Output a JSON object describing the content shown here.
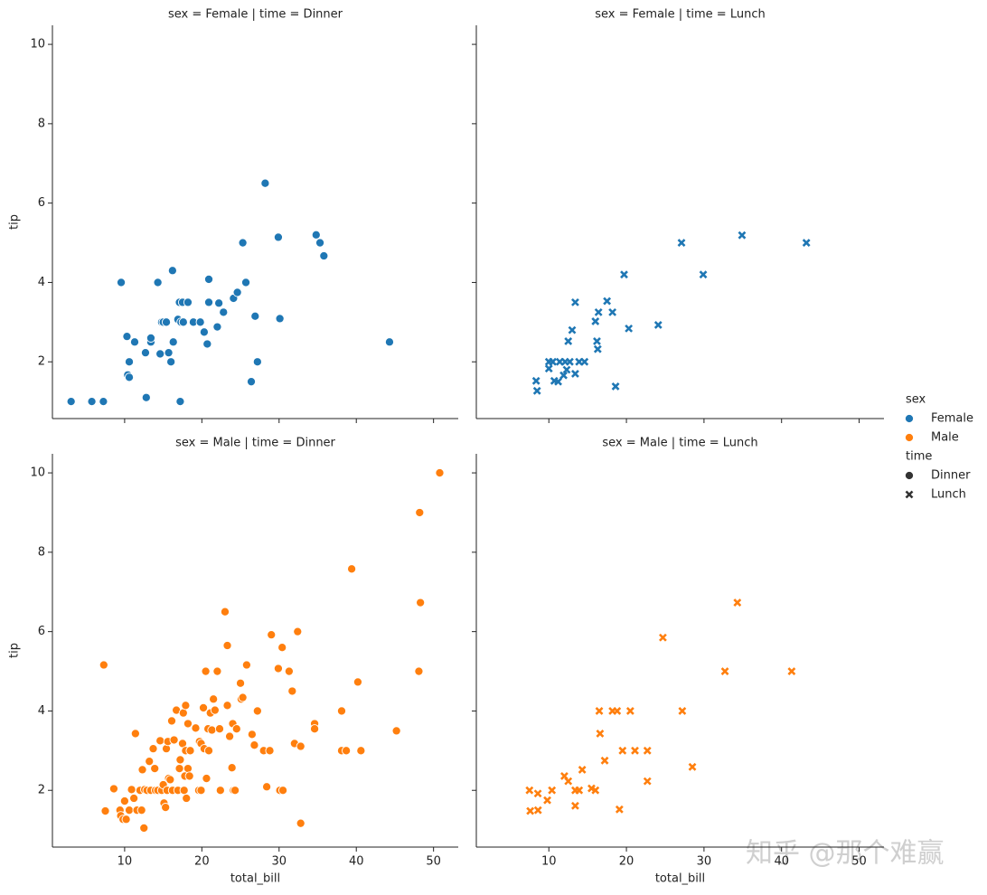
{
  "chart_data": [
    {
      "type": "scatter",
      "title": "sex = Female | time = Dinner",
      "ylabel": "tip",
      "xlim": [
        0.65,
        53.2
      ],
      "ylim": [
        0.57,
        10.48
      ],
      "xticks": [
        10,
        20,
        30,
        40,
        50
      ],
      "yticks": [
        2,
        4,
        6,
        8,
        10
      ],
      "show_xticklabels": false,
      "show_yticklabels": true,
      "series": [
        {
          "color": "#1f77b4",
          "marker": "circle",
          "x": [
            3.07,
            5.75,
            7.25,
            9.55,
            10.3,
            10.4,
            10.6,
            10.6,
            11.3,
            12.7,
            12.8,
            13.4,
            13.4,
            14.3,
            14.6,
            14.8,
            15.0,
            15.4,
            15.7,
            16.0,
            16.2,
            16.3,
            16.9,
            17.1,
            17.2,
            17.3,
            17.5,
            17.6,
            18.2,
            18.9,
            19.8,
            20.3,
            20.7,
            20.9,
            20.9,
            22.0,
            22.2,
            22.8,
            24.1,
            24.6,
            25.3,
            25.7,
            26.4,
            26.9,
            27.2,
            28.2,
            29.9,
            30.1,
            34.8,
            35.3,
            35.8,
            44.3
          ],
          "values": [
            1.0,
            1.0,
            1.0,
            4.0,
            2.64,
            1.67,
            1.61,
            2.0,
            2.5,
            2.23,
            1.1,
            2.5,
            2.6,
            4.0,
            2.2,
            3.0,
            3.0,
            3.0,
            2.23,
            2.0,
            4.3,
            2.5,
            3.07,
            3.5,
            1.0,
            3.0,
            3.5,
            3.0,
            3.5,
            3.0,
            3.0,
            2.75,
            2.45,
            3.5,
            4.08,
            2.88,
            3.48,
            3.25,
            3.6,
            3.75,
            5.0,
            4.0,
            1.5,
            3.15,
            2.0,
            6.5,
            5.14,
            3.09,
            5.2,
            5.0,
            4.67,
            2.5
          ]
        }
      ]
    },
    {
      "type": "scatter",
      "title": "sex = Female | time = Lunch",
      "xlim": [
        0.65,
        53.2
      ],
      "ylim": [
        0.57,
        10.48
      ],
      "xticks": [
        10,
        20,
        30,
        40,
        50
      ],
      "yticks": [
        2,
        4,
        6,
        8,
        10
      ],
      "show_xticklabels": false,
      "show_yticklabels": false,
      "series": [
        {
          "color": "#1f77b4",
          "marker": "x",
          "x": [
            8.36,
            8.48,
            10.0,
            10.0,
            10.5,
            10.7,
            11.2,
            11.4,
            11.9,
            12.1,
            12.3,
            12.5,
            12.7,
            13.0,
            13.4,
            13.4,
            13.9,
            14.6,
            16.0,
            16.2,
            16.3,
            16.4,
            17.5,
            18.2,
            18.6,
            19.7,
            20.3,
            24.1,
            27.1,
            29.9,
            34.9,
            43.2
          ],
          "values": [
            1.52,
            1.27,
            2.0,
            1.83,
            2.0,
            1.52,
            1.5,
            2.0,
            1.66,
            2.0,
            1.8,
            2.52,
            2.0,
            2.8,
            1.7,
            3.5,
            2.0,
            2.0,
            3.02,
            2.52,
            2.32,
            3.25,
            3.53,
            3.25,
            1.38,
            4.2,
            2.84,
            2.93,
            5.0,
            4.2,
            5.19,
            5.0
          ]
        }
      ]
    },
    {
      "type": "scatter",
      "title": "sex = Male | time = Dinner",
      "xlabel": "total_bill",
      "ylabel": "tip",
      "xlim": [
        0.65,
        53.2
      ],
      "ylim": [
        0.57,
        10.48
      ],
      "xticks": [
        10,
        20,
        30,
        40,
        50
      ],
      "yticks": [
        2,
        4,
        6,
        8,
        10
      ],
      "show_xticklabels": true,
      "show_yticklabels": true,
      "series": [
        {
          "color": "#ff7f0e",
          "marker": "circle",
          "x": [
            7.3,
            7.5,
            8.6,
            9.4,
            9.5,
            9.8,
            10.0,
            10.2,
            10.6,
            10.9,
            11.2,
            11.4,
            11.6,
            12.0,
            12.2,
            12.3,
            12.5,
            12.6,
            12.9,
            13.2,
            13.4,
            13.7,
            13.9,
            14.0,
            14.3,
            14.6,
            14.8,
            15.0,
            15.1,
            15.3,
            15.4,
            15.5,
            15.6,
            15.7,
            15.9,
            16.1,
            16.2,
            16.4,
            16.7,
            16.9,
            17.1,
            17.2,
            17.5,
            17.6,
            17.7,
            17.8,
            17.9,
            18.0,
            18.2,
            17.9,
            18.2,
            18.4,
            18.5,
            19.2,
            19.6,
            19.7,
            19.9,
            19.9,
            20.2,
            20.3,
            20.5,
            20.6,
            20.8,
            20.9,
            21.1,
            21.3,
            21.5,
            21.7,
            22.0,
            22.3,
            22.4,
            23.0,
            23.3,
            23.3,
            23.6,
            23.9,
            24.0,
            24.1,
            24.3,
            24.5,
            25.0,
            25.1,
            25.3,
            25.8,
            26.5,
            26.8,
            27.2,
            28.0,
            28.4,
            28.8,
            29.0,
            29.9,
            30.1,
            30.4,
            30.5,
            31.3,
            31.7,
            32.0,
            32.4,
            32.8,
            32.8,
            34.6,
            34.6,
            38.1,
            38.1,
            38.7,
            39.4,
            40.2,
            40.6,
            45.2,
            48.1,
            48.2,
            48.3,
            50.8
          ],
          "values": [
            5.16,
            1.48,
            2.04,
            1.5,
            1.36,
            1.27,
            1.73,
            1.27,
            1.5,
            2.02,
            1.8,
            3.43,
            1.5,
            2.0,
            1.5,
            2.52,
            1.05,
            2.02,
            2.0,
            2.73,
            2.0,
            3.05,
            2.55,
            2.0,
            2.0,
            3.25,
            2.0,
            2.14,
            1.68,
            1.57,
            3.05,
            2.0,
            3.23,
            2.3,
            2.27,
            3.75,
            2.0,
            3.27,
            4.02,
            2.0,
            2.55,
            2.77,
            3.18,
            3.95,
            2.0,
            2.36,
            3.0,
            1.8,
            3.68,
            4.14,
            2.55,
            2.36,
            3.0,
            3.57,
            2.0,
            3.23,
            3.18,
            2.0,
            4.08,
            3.05,
            5.0,
            2.3,
            3.55,
            3.0,
            3.95,
            3.52,
            4.3,
            4.02,
            5.0,
            3.55,
            2.0,
            6.5,
            5.65,
            4.14,
            3.36,
            2.57,
            3.68,
            2.0,
            2.0,
            3.55,
            4.7,
            4.3,
            4.34,
            5.16,
            3.41,
            3.14,
            4.0,
            3.0,
            2.09,
            3.0,
            5.92,
            5.07,
            2.0,
            5.6,
            2.0,
            5.0,
            4.5,
            3.18,
            6.0,
            3.11,
            1.17,
            3.68,
            3.55,
            4.0,
            3.0,
            3.0,
            7.58,
            4.73,
            3.0,
            3.5,
            5.0,
            9.0,
            6.73,
            10.0
          ]
        }
      ]
    },
    {
      "type": "scatter",
      "title": "sex = Male | time = Lunch",
      "xlabel": "total_bill",
      "xlim": [
        0.65,
        53.2
      ],
      "ylim": [
        0.57,
        10.48
      ],
      "xticks": [
        10,
        20,
        30,
        40,
        50
      ],
      "yticks": [
        2,
        4,
        6,
        8,
        10
      ],
      "show_xticklabels": true,
      "show_yticklabels": false,
      "series": [
        {
          "color": "#ff7f0e",
          "marker": "x",
          "x": [
            7.5,
            7.6,
            8.58,
            8.6,
            9.8,
            10.4,
            12.0,
            12.5,
            13.4,
            13.9,
            13.4,
            14.3,
            15.5,
            16.0,
            16.5,
            16.6,
            17.2,
            18.2,
            18.8,
            19.1,
            19.5,
            20.5,
            21.1,
            22.7,
            22.7,
            24.7,
            27.2,
            28.5,
            32.7,
            34.3,
            41.3
          ],
          "values": [
            2.0,
            1.48,
            1.92,
            1.5,
            1.75,
            2.0,
            2.36,
            2.23,
            2.0,
            2.0,
            1.61,
            2.52,
            2.05,
            2.0,
            4.0,
            3.43,
            2.75,
            4.0,
            4.0,
            1.52,
            3.0,
            4.0,
            3.0,
            2.23,
            3.0,
            5.85,
            4.0,
            2.59,
            5.0,
            6.73,
            5.0
          ]
        }
      ]
    }
  ],
  "legend": {
    "loc": "center right",
    "hue_title": "sex",
    "hue": [
      {
        "name": "Female",
        "color": "#1f77b4"
      },
      {
        "name": "Male",
        "color": "#ff7f0e"
      }
    ],
    "style_title": "time",
    "style": [
      {
        "name": "Dinner",
        "marker": "circle"
      },
      {
        "name": "Lunch",
        "marker": "x"
      }
    ]
  },
  "watermark": "知乎 @那个难赢"
}
